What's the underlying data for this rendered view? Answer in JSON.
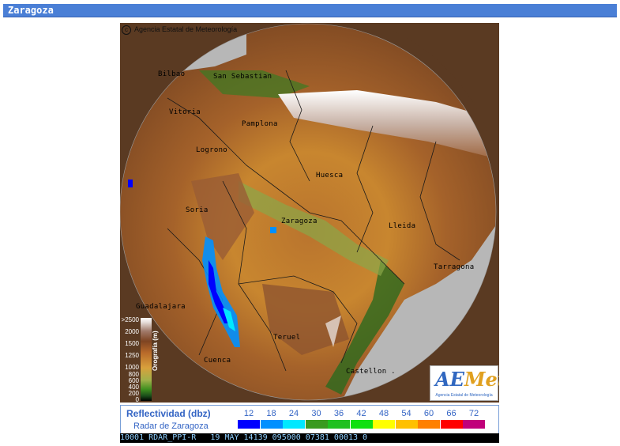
{
  "header": {
    "title": "Zaragoza"
  },
  "map": {
    "copyright": "Agencia Estatal de Meteorología",
    "cities": [
      {
        "name": "Bilbao"
      },
      {
        "name": "San Sebastian"
      },
      {
        "name": "Vitoria"
      },
      {
        "name": "Pamplona"
      },
      {
        "name": "Logrono"
      },
      {
        "name": "Huesca"
      },
      {
        "name": "Soria"
      },
      {
        "name": "Zaragoza"
      },
      {
        "name": "Lleida"
      },
      {
        "name": "Tarragona"
      },
      {
        "name": "Guadalajara"
      },
      {
        "name": "Teruel"
      },
      {
        "name": "Cuenca"
      },
      {
        "name": "Castellon ."
      }
    ],
    "orography_legend": {
      "title": "Orografía (m)",
      "ticks": [
        ">2500",
        "2000",
        "1500",
        "1250",
        "1000",
        "800",
        "600",
        "400",
        "200",
        "0"
      ]
    },
    "logo": {
      "text_a": "AE",
      "text_b": "Met",
      "subtitle": "Agencia Estatal de Meteorología"
    }
  },
  "legend": {
    "title": "Reflectividad (dbz)",
    "subtitle": "Radar de Zaragoza",
    "scale": [
      {
        "value": "12",
        "color": "#0000ff"
      },
      {
        "value": "18",
        "color": "#0090ff"
      },
      {
        "value": "24",
        "color": "#00e8ff"
      },
      {
        "value": "30",
        "color": "#3a9a20"
      },
      {
        "value": "36",
        "color": "#20c020"
      },
      {
        "value": "42",
        "color": "#10e010"
      },
      {
        "value": "48",
        "color": "#ffff00"
      },
      {
        "value": "54",
        "color": "#ffc000"
      },
      {
        "value": "60",
        "color": "#ff8000"
      },
      {
        "value": "66",
        "color": "#ff0000"
      },
      {
        "value": "72",
        "color": "#c0007a"
      }
    ]
  },
  "status": {
    "text": "10001 RDAR_PPI-R   19 MAY 14139 095000 07381 00013 0"
  }
}
